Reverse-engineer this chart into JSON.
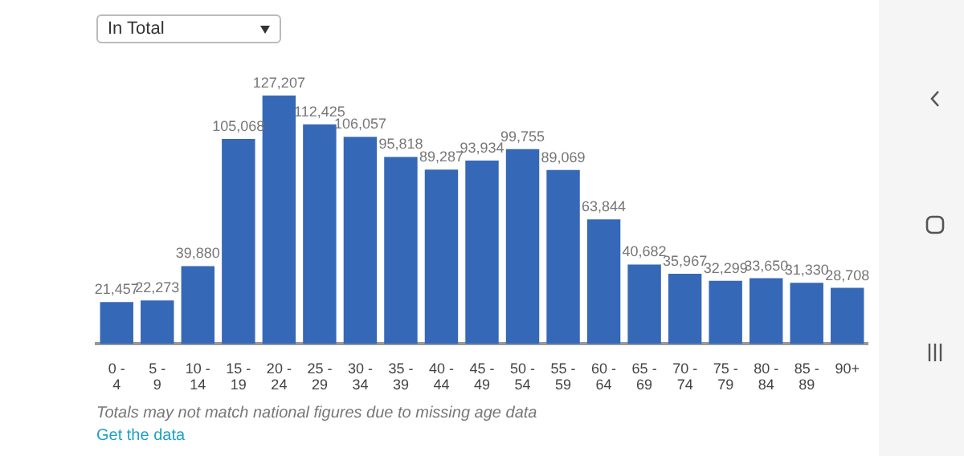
{
  "chart_data": {
    "type": "bar",
    "subtitle": "In Total",
    "categories": [
      "0 - 4",
      "5 - 9",
      "10 - 14",
      "15 - 19",
      "20 - 24",
      "25 - 29",
      "30 - 34",
      "35 - 39",
      "40 - 44",
      "45 - 49",
      "50 - 54",
      "55 - 59",
      "60 - 64",
      "65 - 69",
      "70 - 74",
      "75 - 79",
      "80 - 84",
      "85 - 89",
      "90+"
    ],
    "values": [
      21457,
      22273,
      39880,
      105068,
      127207,
      112425,
      106057,
      95818,
      89287,
      93934,
      99755,
      89069,
      63844,
      40682,
      35967,
      32299,
      33650,
      31330,
      28708
    ],
    "color": "#3568b7",
    "value_labels": [
      "21,457",
      "22,273",
      "39,880",
      "105,068",
      "127,207",
      "112,425",
      "106,057",
      "95,818",
      "89,287",
      "93,934",
      "99,755",
      "89,069",
      "63,844",
      "40,682",
      "35,967",
      "32,299",
      "33,650",
      "31,330",
      "28,708"
    ],
    "tick_labels": "x",
    "annotations": [
      "Totals may not match national figures due to missing age data",
      "Get the data"
    ]
  }
}
